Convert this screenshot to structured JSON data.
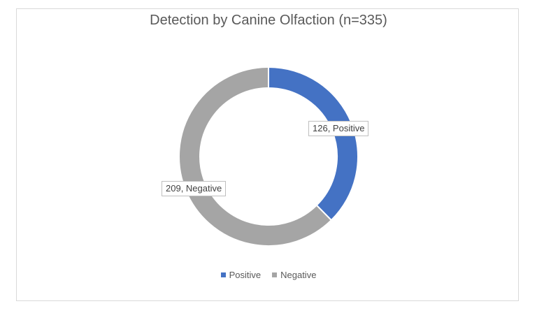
{
  "chart_data": {
    "type": "pie",
    "subtype": "donut",
    "title": "Detection by Canine Olfaction (n=335)",
    "categories": [
      "Positive",
      "Negative"
    ],
    "values": [
      126,
      209
    ],
    "colors": [
      "#4472C4",
      "#A5A5A5"
    ],
    "data_labels": [
      "126, Positive",
      "209, Negative"
    ],
    "legend": {
      "position": "bottom",
      "entries": [
        "Positive",
        "Negative"
      ]
    },
    "total": 335
  },
  "chart": {
    "title": "Detection by Canine Olfaction (n=335)",
    "labels": {
      "positive": "126, Positive",
      "negative": "209, Negative"
    },
    "legend": {
      "positive": "Positive",
      "negative": "Negative"
    }
  }
}
